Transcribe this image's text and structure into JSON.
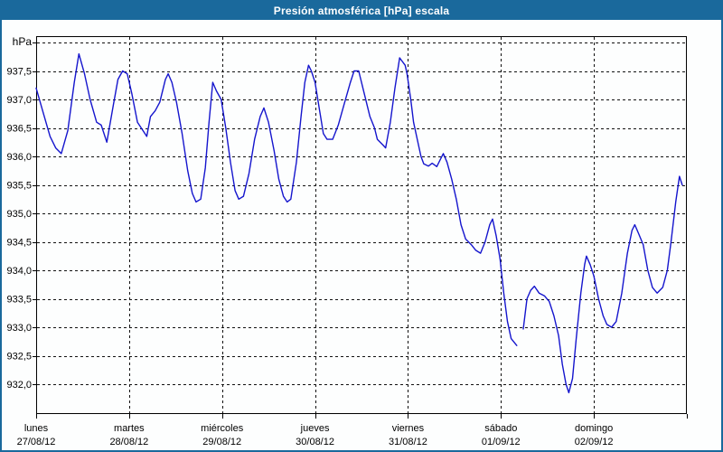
{
  "window": {
    "title": "Presión atmosférica [hPa] escala"
  },
  "colors": {
    "titlebar_bg": "#1a699c",
    "outer_border": "#1a699c",
    "plot_border": "#000000",
    "grid": "#111111",
    "line": "#1515cd",
    "background": "#fdfefe",
    "label_text": "#000000"
  },
  "chart_data": {
    "type": "line",
    "title": "Presión atmosférica [hPa] escala",
    "unit_label": "hPa",
    "grid": "dashed",
    "legend_position": "none",
    "y_axis": {
      "gridline_top_value": 938.0,
      "gridline_bottom_value": 932.0,
      "step": 0.5,
      "ticks": [
        {
          "value": 937.5,
          "label": "937,5"
        },
        {
          "value": 937.0,
          "label": "937,0"
        },
        {
          "value": 936.5,
          "label": "936,5"
        },
        {
          "value": 936.0,
          "label": "936,0"
        },
        {
          "value": 935.5,
          "label": "935,5"
        },
        {
          "value": 935.0,
          "label": "935,0"
        },
        {
          "value": 934.5,
          "label": "934,5"
        },
        {
          "value": 934.0,
          "label": "934,0"
        },
        {
          "value": 933.5,
          "label": "933,5"
        },
        {
          "value": 933.0,
          "label": "933,0"
        },
        {
          "value": 932.5,
          "label": "932,5"
        },
        {
          "value": 932.0,
          "label": "932,0"
        }
      ]
    },
    "x_axis": {
      "span_days": 7,
      "days": [
        {
          "name": "lunes",
          "date": "27/08/12"
        },
        {
          "name": "martes",
          "date": "28/08/12"
        },
        {
          "name": "miércoles",
          "date": "29/08/12"
        },
        {
          "name": "jueves",
          "date": "30/08/12"
        },
        {
          "name": "viernes",
          "date": "31/08/12"
        },
        {
          "name": "sábado",
          "date": "01/09/12"
        },
        {
          "name": "domingo",
          "date": "02/09/12"
        }
      ]
    },
    "series": [
      {
        "name": "Presión atmosférica",
        "color": "#1515cd",
        "segments": [
          [
            [
              0.0,
              937.2
            ],
            [
              0.07,
              936.8
            ],
            [
              0.15,
              936.35
            ],
            [
              0.21,
              936.15
            ],
            [
              0.27,
              936.05
            ],
            [
              0.34,
              936.45
            ],
            [
              0.41,
              937.3
            ],
            [
              0.46,
              937.8
            ],
            [
              0.52,
              937.45
            ],
            [
              0.58,
              937.0
            ],
            [
              0.65,
              936.6
            ],
            [
              0.7,
              936.55
            ],
            [
              0.76,
              936.25
            ],
            [
              0.83,
              936.9
            ],
            [
              0.88,
              937.35
            ],
            [
              0.93,
              937.5
            ],
            [
              0.98,
              937.45
            ],
            [
              1.03,
              937.1
            ],
            [
              1.09,
              936.6
            ],
            [
              1.15,
              936.45
            ],
            [
              1.19,
              936.35
            ],
            [
              1.23,
              936.7
            ],
            [
              1.28,
              936.8
            ],
            [
              1.33,
              936.95
            ],
            [
              1.39,
              937.35
            ],
            [
              1.42,
              937.45
            ],
            [
              1.46,
              937.3
            ],
            [
              1.51,
              936.95
            ],
            [
              1.57,
              936.4
            ],
            [
              1.63,
              935.75
            ],
            [
              1.68,
              935.35
            ],
            [
              1.72,
              935.2
            ],
            [
              1.77,
              935.25
            ],
            [
              1.82,
              935.8
            ],
            [
              1.86,
              936.6
            ],
            [
              1.9,
              937.3
            ],
            [
              1.94,
              937.15
            ],
            [
              1.99,
              937.0
            ],
            [
              2.04,
              936.5
            ],
            [
              2.09,
              935.9
            ],
            [
              2.14,
              935.4
            ],
            [
              2.18,
              935.25
            ],
            [
              2.23,
              935.3
            ],
            [
              2.29,
              935.7
            ],
            [
              2.35,
              936.3
            ],
            [
              2.41,
              936.7
            ],
            [
              2.45,
              936.85
            ],
            [
              2.5,
              936.6
            ],
            [
              2.56,
              936.1
            ],
            [
              2.61,
              935.6
            ],
            [
              2.66,
              935.3
            ],
            [
              2.7,
              935.2
            ],
            [
              2.74,
              935.25
            ],
            [
              2.8,
              935.9
            ],
            [
              2.85,
              936.7
            ],
            [
              2.89,
              937.3
            ],
            [
              2.93,
              937.6
            ],
            [
              2.96,
              937.5
            ],
            [
              3.0,
              937.3
            ],
            [
              3.05,
              936.8
            ],
            [
              3.09,
              936.4
            ],
            [
              3.13,
              936.3
            ],
            [
              3.19,
              936.3
            ],
            [
              3.25,
              936.55
            ],
            [
              3.31,
              936.9
            ],
            [
              3.38,
              937.3
            ],
            [
              3.42,
              937.5
            ],
            [
              3.47,
              937.5
            ],
            [
              3.53,
              937.1
            ],
            [
              3.59,
              936.7
            ],
            [
              3.64,
              936.5
            ],
            [
              3.67,
              936.3
            ],
            [
              3.73,
              936.2
            ],
            [
              3.76,
              936.15
            ],
            [
              3.81,
              936.6
            ],
            [
              3.86,
              937.2
            ],
            [
              3.91,
              937.73
            ],
            [
              3.97,
              937.6
            ],
            [
              3.99,
              937.45
            ],
            [
              4.03,
              937.0
            ],
            [
              4.06,
              936.6
            ],
            [
              4.1,
              936.3
            ],
            [
              4.14,
              936.0
            ],
            [
              4.17,
              935.87
            ],
            [
              4.22,
              935.83
            ],
            [
              4.26,
              935.88
            ],
            [
              4.31,
              935.82
            ],
            [
              4.35,
              935.95
            ],
            [
              4.38,
              936.05
            ],
            [
              4.42,
              935.9
            ],
            [
              4.47,
              935.6
            ],
            [
              4.52,
              935.25
            ],
            [
              4.57,
              934.8
            ],
            [
              4.62,
              934.55
            ],
            [
              4.68,
              934.45
            ],
            [
              4.73,
              934.35
            ],
            [
              4.78,
              934.3
            ],
            [
              4.83,
              934.5
            ],
            [
              4.88,
              934.8
            ],
            [
              4.91,
              934.9
            ],
            [
              4.95,
              934.6
            ],
            [
              4.99,
              934.2
            ],
            [
              5.03,
              933.6
            ],
            [
              5.07,
              933.1
            ],
            [
              5.11,
              932.8
            ],
            [
              5.17,
              932.68
            ]
          ],
          [
            [
              5.24,
              932.97
            ],
            [
              5.28,
              933.5
            ],
            [
              5.32,
              933.65
            ],
            [
              5.36,
              933.72
            ],
            [
              5.41,
              933.6
            ],
            [
              5.47,
              933.55
            ],
            [
              5.52,
              933.45
            ],
            [
              5.57,
              933.2
            ],
            [
              5.62,
              932.85
            ],
            [
              5.66,
              932.35
            ],
            [
              5.7,
              932.0
            ],
            [
              5.73,
              931.85
            ],
            [
              5.77,
              932.1
            ],
            [
              5.81,
              932.8
            ],
            [
              5.86,
              933.6
            ],
            [
              5.9,
              934.1
            ],
            [
              5.92,
              934.25
            ],
            [
              5.96,
              934.1
            ],
            [
              6.0,
              933.9
            ],
            [
              6.05,
              933.5
            ],
            [
              6.1,
              933.2
            ],
            [
              6.14,
              933.05
            ],
            [
              6.19,
              933.0
            ],
            [
              6.24,
              933.1
            ],
            [
              6.3,
              933.6
            ],
            [
              6.36,
              934.3
            ],
            [
              6.41,
              934.7
            ],
            [
              6.44,
              934.8
            ],
            [
              6.48,
              934.65
            ],
            [
              6.53,
              934.45
            ],
            [
              6.58,
              934.0
            ],
            [
              6.63,
              933.7
            ],
            [
              6.68,
              933.6
            ],
            [
              6.74,
              933.7
            ],
            [
              6.79,
              934.0
            ],
            [
              6.83,
              934.5
            ],
            [
              6.88,
              935.2
            ],
            [
              6.92,
              935.65
            ],
            [
              6.95,
              935.5
            ]
          ]
        ]
      }
    ]
  }
}
